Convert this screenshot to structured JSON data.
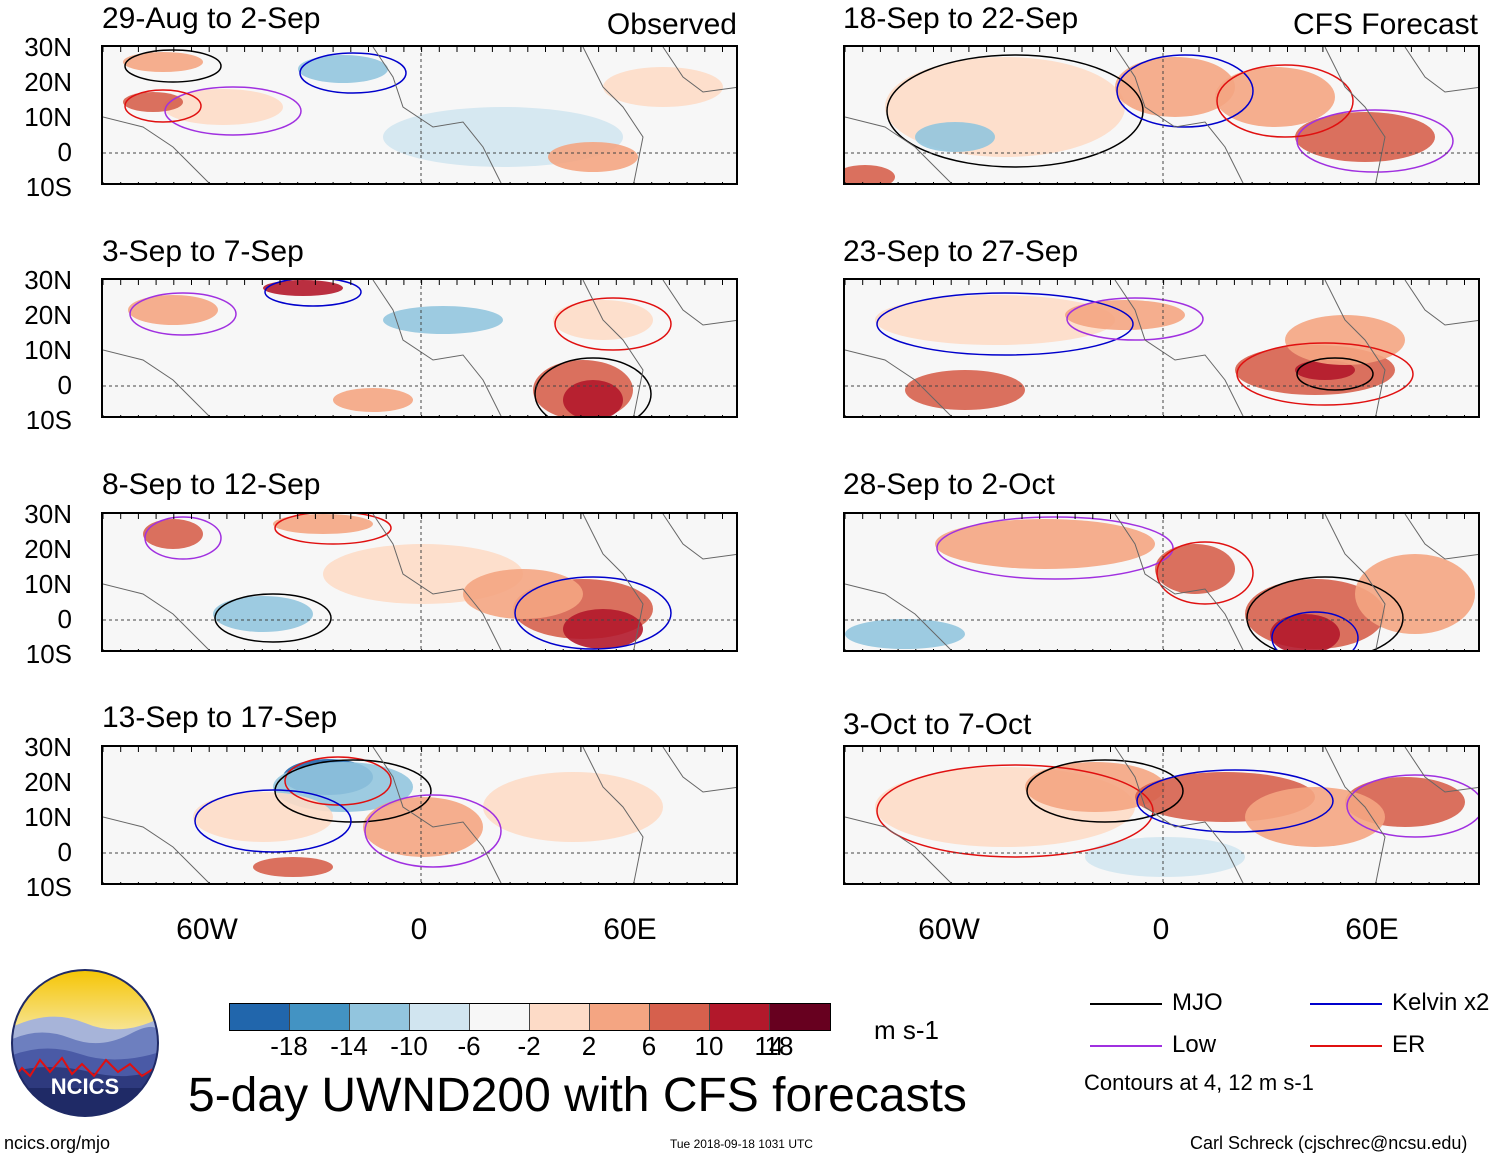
{
  "figure": {
    "title": "5-day UWND200 with CFS forecasts",
    "units": "m s-1",
    "website": "ncics.org/mjo",
    "timestamp": "Tue 2018-09-18 1031 UTC",
    "author": "Carl Schreck (cjschrec@ncsu.edu)",
    "logo_text": "NCICS"
  },
  "columns": {
    "observed_label": "Observed",
    "forecast_label": "CFS Forecast"
  },
  "axes": {
    "lat_labels": [
      "30N",
      "20N",
      "10N",
      "0",
      "10S"
    ],
    "lon_labels": [
      "60W",
      "0",
      "60E"
    ]
  },
  "panels": {
    "observed": [
      {
        "period": "29-Aug to 2-Sep"
      },
      {
        "period": "3-Sep to 7-Sep"
      },
      {
        "period": "8-Sep to 12-Sep"
      },
      {
        "period": "13-Sep to 17-Sep"
      }
    ],
    "forecast": [
      {
        "period": "18-Sep to 22-Sep"
      },
      {
        "period": "23-Sep to 27-Sep"
      },
      {
        "period": "28-Sep to 2-Oct"
      },
      {
        "period": "3-Oct to 7-Oct"
      }
    ]
  },
  "colorbar": {
    "ticks": [
      "-18",
      "-14",
      "-10",
      "-6",
      "-2",
      "2",
      "6",
      "10",
      "14",
      "18"
    ],
    "colors": [
      "#0b3565",
      "#2166ac",
      "#4393c3",
      "#92c5de",
      "#d1e5f0",
      "#f7f7f7",
      "#fddbc7",
      "#f4a582",
      "#d6604d",
      "#b2182b",
      "#67001f"
    ]
  },
  "legend": {
    "items": [
      {
        "label": "MJO",
        "color": "#000000"
      },
      {
        "label": "Kelvin x2",
        "color": "#0000cc"
      },
      {
        "label": "Low",
        "color": "#a030e0"
      },
      {
        "label": "ER",
        "color": "#e01010"
      }
    ],
    "note": "Contours at 4, 12 m s-1"
  }
}
